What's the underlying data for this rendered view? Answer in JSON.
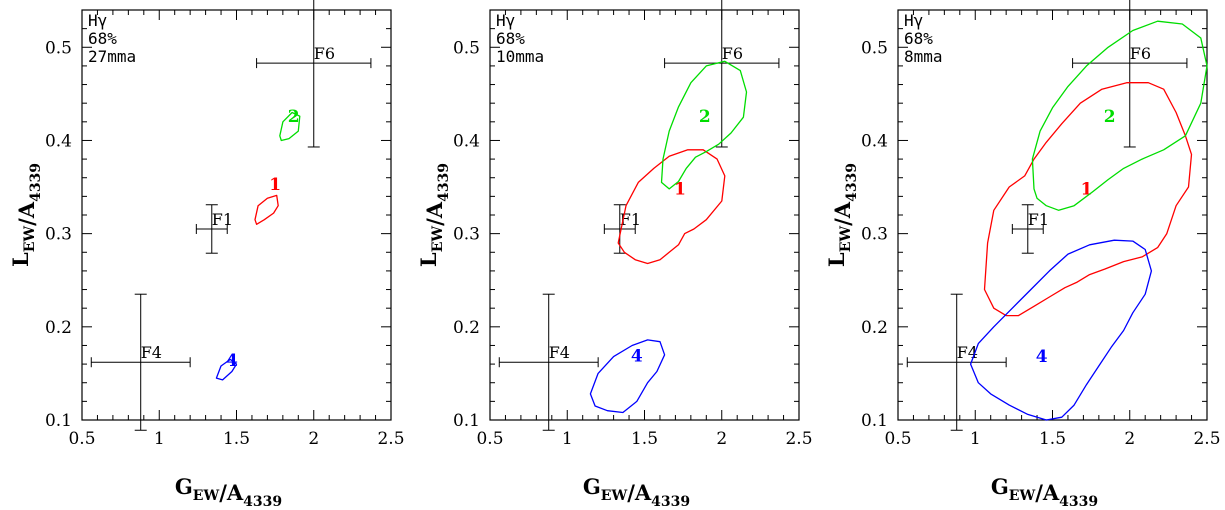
{
  "chart_data": [
    {
      "type": "contour",
      "line_name": "Hγ",
      "confidence": "68%",
      "error": "27mma",
      "xlabel": "G_EW/A_4339",
      "ylabel": "L_EW/A_4339",
      "xlim": [
        0.5,
        2.5
      ],
      "ylim": [
        0.1,
        0.54
      ],
      "xticks": [
        0.5,
        1,
        1.5,
        2,
        2.5
      ],
      "yticks": [
        0.1,
        0.2,
        0.3,
        0.4,
        0.5
      ],
      "xtick_labels": [
        "0.5",
        "1",
        "1.5",
        "2",
        "2.5"
      ],
      "ytick_labels": [
        "0.1",
        "0.2",
        "0.3",
        "0.4",
        "0.5"
      ],
      "reference_points": [
        {
          "name": "F1",
          "x": 1.34,
          "y": 0.305,
          "xerr": 0.1,
          "yerr": 0.026
        },
        {
          "name": "F4",
          "x": 0.88,
          "y": 0.162,
          "xerr": 0.32,
          "yerr": 0.073
        },
        {
          "name": "F6",
          "x": 2.0,
          "y": 0.483,
          "xerr": 0.37,
          "yerr": 0.09
        }
      ],
      "contours": [
        {
          "label": "1",
          "color": "#ff0000",
          "label_pos": [
            1.75,
            0.347
          ],
          "points": [
            [
              1.62,
              0.315
            ],
            [
              1.64,
              0.33
            ],
            [
              1.7,
              0.338
            ],
            [
              1.76,
              0.341
            ],
            [
              1.77,
              0.33
            ],
            [
              1.74,
              0.322
            ],
            [
              1.68,
              0.315
            ],
            [
              1.63,
              0.31
            ]
          ]
        },
        {
          "label": "2",
          "color": "#00dd00",
          "label_pos": [
            1.87,
            0.42
          ],
          "points": [
            [
              1.78,
              0.405
            ],
            [
              1.8,
              0.42
            ],
            [
              1.86,
              0.43
            ],
            [
              1.91,
              0.426
            ],
            [
              1.9,
              0.41
            ],
            [
              1.84,
              0.402
            ],
            [
              1.79,
              0.4
            ]
          ]
        },
        {
          "label": "4",
          "color": "#0000ff",
          "label_pos": [
            1.47,
            0.158
          ],
          "points": [
            [
              1.37,
              0.145
            ],
            [
              1.4,
              0.158
            ],
            [
              1.46,
              0.165
            ],
            [
              1.5,
              0.16
            ],
            [
              1.47,
              0.152
            ],
            [
              1.41,
              0.143
            ]
          ]
        }
      ]
    },
    {
      "type": "contour",
      "line_name": "Hγ",
      "confidence": "68%",
      "error": "10mma",
      "xlabel": "G_EW/A_4339",
      "ylabel": "L_EW/A_4339",
      "xlim": [
        0.5,
        2.5
      ],
      "ylim": [
        0.1,
        0.54
      ],
      "xticks": [
        0.5,
        1,
        1.5,
        2,
        2.5
      ],
      "yticks": [
        0.1,
        0.2,
        0.3,
        0.4,
        0.5
      ],
      "xtick_labels": [
        "0.5",
        "1",
        "1.5",
        "2",
        "2.5"
      ],
      "ytick_labels": [
        "0.1",
        "0.2",
        "0.3",
        "0.4",
        "0.5"
      ],
      "reference_points": [
        {
          "name": "F1",
          "x": 1.34,
          "y": 0.305,
          "xerr": 0.1,
          "yerr": 0.026
        },
        {
          "name": "F4",
          "x": 0.88,
          "y": 0.162,
          "xerr": 0.32,
          "yerr": 0.073
        },
        {
          "name": "F6",
          "x": 2.0,
          "y": 0.483,
          "xerr": 0.37,
          "yerr": 0.09
        }
      ],
      "contours": [
        {
          "label": "1",
          "color": "#ff0000",
          "label_pos": [
            1.73,
            0.342
          ],
          "points": [
            [
              1.33,
              0.29
            ],
            [
              1.38,
              0.33
            ],
            [
              1.46,
              0.355
            ],
            [
              1.56,
              0.37
            ],
            [
              1.66,
              0.383
            ],
            [
              1.78,
              0.39
            ],
            [
              1.88,
              0.39
            ],
            [
              1.97,
              0.38
            ],
            [
              2.02,
              0.362
            ],
            [
              2.0,
              0.335
            ],
            [
              1.9,
              0.315
            ],
            [
              1.82,
              0.305
            ],
            [
              1.76,
              0.3
            ],
            [
              1.72,
              0.288
            ],
            [
              1.66,
              0.28
            ],
            [
              1.6,
              0.272
            ],
            [
              1.52,
              0.268
            ],
            [
              1.44,
              0.272
            ],
            [
              1.37,
              0.28
            ]
          ]
        },
        {
          "label": "2",
          "color": "#00dd00",
          "label_pos": [
            1.89,
            0.42
          ],
          "points": [
            [
              1.61,
              0.355
            ],
            [
              1.62,
              0.38
            ],
            [
              1.66,
              0.41
            ],
            [
              1.72,
              0.436
            ],
            [
              1.8,
              0.462
            ],
            [
              1.9,
              0.48
            ],
            [
              2.02,
              0.485
            ],
            [
              2.12,
              0.475
            ],
            [
              2.16,
              0.452
            ],
            [
              2.14,
              0.425
            ],
            [
              2.06,
              0.408
            ],
            [
              1.98,
              0.396
            ],
            [
              1.9,
              0.388
            ],
            [
              1.83,
              0.382
            ],
            [
              1.77,
              0.37
            ],
            [
              1.72,
              0.356
            ],
            [
              1.66,
              0.348
            ]
          ]
        },
        {
          "label": "4",
          "color": "#0000ff",
          "label_pos": [
            1.45,
            0.163
          ],
          "points": [
            [
              1.15,
              0.128
            ],
            [
              1.2,
              0.15
            ],
            [
              1.3,
              0.168
            ],
            [
              1.42,
              0.18
            ],
            [
              1.52,
              0.186
            ],
            [
              1.6,
              0.184
            ],
            [
              1.63,
              0.17
            ],
            [
              1.58,
              0.152
            ],
            [
              1.52,
              0.14
            ],
            [
              1.45,
              0.12
            ],
            [
              1.36,
              0.108
            ],
            [
              1.26,
              0.11
            ],
            [
              1.18,
              0.115
            ]
          ]
        }
      ]
    },
    {
      "type": "contour",
      "line_name": "Hγ",
      "confidence": "68%",
      "error": "8mma",
      "xlabel": "G_EW/A_4339",
      "ylabel": "L_EW/A_4339",
      "xlim": [
        0.5,
        2.5
      ],
      "ylim": [
        0.1,
        0.54
      ],
      "xticks": [
        0.5,
        1,
        1.5,
        2,
        2.5
      ],
      "yticks": [
        0.1,
        0.2,
        0.3,
        0.4,
        0.5
      ],
      "xtick_labels": [
        "0.5",
        "1",
        "1.5",
        "2",
        "2.5"
      ],
      "ytick_labels": [
        "0.1",
        "0.2",
        "0.3",
        "0.4",
        "0.5"
      ],
      "reference_points": [
        {
          "name": "F1",
          "x": 1.34,
          "y": 0.305,
          "xerr": 0.1,
          "yerr": 0.026
        },
        {
          "name": "F4",
          "x": 0.88,
          "y": 0.162,
          "xerr": 0.32,
          "yerr": 0.073
        },
        {
          "name": "F6",
          "x": 2.0,
          "y": 0.483,
          "xerr": 0.37,
          "yerr": 0.09
        }
      ],
      "contours": [
        {
          "label": "1",
          "color": "#ff0000",
          "label_pos": [
            1.72,
            0.342
          ],
          "points": [
            [
              1.06,
              0.24
            ],
            [
              1.08,
              0.29
            ],
            [
              1.12,
              0.325
            ],
            [
              1.22,
              0.35
            ],
            [
              1.32,
              0.362
            ],
            [
              1.38,
              0.38
            ],
            [
              1.46,
              0.398
            ],
            [
              1.56,
              0.418
            ],
            [
              1.68,
              0.44
            ],
            [
              1.82,
              0.455
            ],
            [
              1.98,
              0.462
            ],
            [
              2.12,
              0.462
            ],
            [
              2.22,
              0.455
            ],
            [
              2.3,
              0.43
            ],
            [
              2.36,
              0.405
            ],
            [
              2.4,
              0.385
            ],
            [
              2.38,
              0.35
            ],
            [
              2.3,
              0.33
            ],
            [
              2.24,
              0.3
            ],
            [
              2.18,
              0.285
            ],
            [
              2.08,
              0.275
            ],
            [
              1.96,
              0.27
            ],
            [
              1.84,
              0.262
            ],
            [
              1.74,
              0.256
            ],
            [
              1.66,
              0.248
            ],
            [
              1.58,
              0.242
            ],
            [
              1.48,
              0.232
            ],
            [
              1.38,
              0.222
            ],
            [
              1.28,
              0.212
            ],
            [
              1.2,
              0.212
            ],
            [
              1.12,
              0.22
            ]
          ]
        },
        {
          "label": "2",
          "color": "#00dd00",
          "label_pos": [
            1.87,
            0.42
          ],
          "points": [
            [
              1.38,
              0.348
            ],
            [
              1.37,
              0.38
            ],
            [
              1.42,
              0.41
            ],
            [
              1.5,
              0.435
            ],
            [
              1.6,
              0.458
            ],
            [
              1.72,
              0.48
            ],
            [
              1.86,
              0.5
            ],
            [
              2.02,
              0.518
            ],
            [
              2.18,
              0.528
            ],
            [
              2.34,
              0.525
            ],
            [
              2.46,
              0.51
            ],
            [
              2.5,
              0.48
            ],
            [
              2.46,
              0.44
            ],
            [
              2.36,
              0.405
            ],
            [
              2.22,
              0.39
            ],
            [
              2.08,
              0.38
            ],
            [
              1.96,
              0.37
            ],
            [
              1.86,
              0.358
            ],
            [
              1.76,
              0.345
            ],
            [
              1.64,
              0.33
            ],
            [
              1.54,
              0.325
            ],
            [
              1.46,
              0.33
            ],
            [
              1.4,
              0.338
            ]
          ]
        },
        {
          "label": "4",
          "color": "#0000ff",
          "label_pos": [
            1.43,
            0.162
          ],
          "points": [
            [
              0.97,
              0.16
            ],
            [
              1.02,
              0.182
            ],
            [
              1.12,
              0.2
            ],
            [
              1.24,
              0.22
            ],
            [
              1.36,
              0.24
            ],
            [
              1.48,
              0.26
            ],
            [
              1.6,
              0.278
            ],
            [
              1.74,
              0.288
            ],
            [
              1.9,
              0.293
            ],
            [
              2.02,
              0.292
            ],
            [
              2.1,
              0.283
            ],
            [
              2.14,
              0.26
            ],
            [
              2.1,
              0.235
            ],
            [
              2.02,
              0.215
            ],
            [
              1.96,
              0.196
            ],
            [
              1.88,
              0.178
            ],
            [
              1.8,
              0.158
            ],
            [
              1.72,
              0.138
            ],
            [
              1.64,
              0.116
            ],
            [
              1.56,
              0.103
            ],
            [
              1.46,
              0.1
            ],
            [
              1.34,
              0.106
            ],
            [
              1.22,
              0.116
            ],
            [
              1.1,
              0.128
            ],
            [
              1.02,
              0.14
            ]
          ]
        }
      ]
    }
  ]
}
